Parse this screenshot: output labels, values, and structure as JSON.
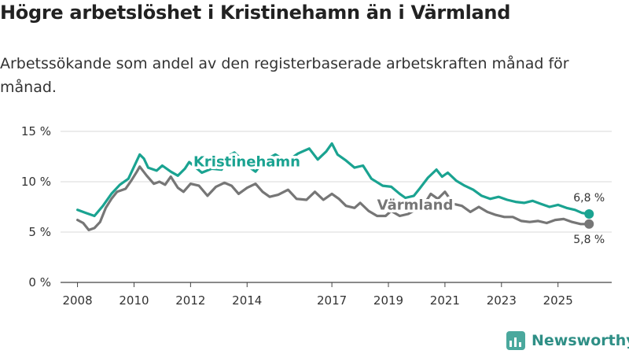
{
  "title": "Högre arbetslöshet i Kristinehamn än i Värmland",
  "subtitle": "Arbetssökande som andel av den registerbaserade arbetskraften månad för månad.",
  "brand": "Newsworthy",
  "chart_data": {
    "type": "line",
    "ylim": [
      0,
      15
    ],
    "xlim": [
      2007.9,
      2026.5
    ],
    "yticks": [
      0,
      5,
      10,
      15
    ],
    "ytick_labels": [
      "0 %",
      "5 %",
      "10 %",
      "15 %"
    ],
    "xticks": [
      2008,
      2010,
      2012,
      2014,
      2017,
      2019,
      2021,
      2023,
      2025
    ],
    "xtick_labels": [
      "2008",
      "2010",
      "2012",
      "2014",
      "2017",
      "2019",
      "2021",
      "2023",
      "2025"
    ],
    "grid": true,
    "series": [
      {
        "name": "Kristinehamn",
        "color": "#1aa391",
        "label_at": [
          2012.1,
          12.0
        ],
        "end_label": "6,8 %",
        "points": [
          [
            2008.0,
            7.2
          ],
          [
            2008.3,
            6.9
          ],
          [
            2008.6,
            6.6
          ],
          [
            2008.9,
            7.6
          ],
          [
            2009.2,
            8.8
          ],
          [
            2009.5,
            9.7
          ],
          [
            2009.8,
            10.3
          ],
          [
            2010.0,
            11.5
          ],
          [
            2010.2,
            12.7
          ],
          [
            2010.35,
            12.3
          ],
          [
            2010.5,
            11.4
          ],
          [
            2010.8,
            11.1
          ],
          [
            2011.0,
            11.6
          ],
          [
            2011.3,
            11.0
          ],
          [
            2011.55,
            10.6
          ],
          [
            2011.8,
            11.3
          ],
          [
            2011.95,
            11.95
          ],
          [
            2012.4,
            10.9
          ],
          [
            2012.75,
            11.3
          ],
          [
            2013.1,
            11.2
          ],
          [
            2013.3,
            12.5
          ],
          [
            2013.55,
            12.9
          ],
          [
            2013.8,
            12.2
          ],
          [
            2014.0,
            11.6
          ],
          [
            2014.3,
            11.0
          ],
          [
            2014.6,
            12.1
          ],
          [
            2015.0,
            12.7
          ],
          [
            2015.4,
            12.0
          ],
          [
            2015.8,
            12.8
          ],
          [
            2016.2,
            13.3
          ],
          [
            2016.5,
            12.2
          ],
          [
            2016.8,
            13.0
          ],
          [
            2017.0,
            13.8
          ],
          [
            2017.2,
            12.7
          ],
          [
            2017.5,
            12.1
          ],
          [
            2017.8,
            11.4
          ],
          [
            2018.1,
            11.6
          ],
          [
            2018.4,
            10.3
          ],
          [
            2018.8,
            9.6
          ],
          [
            2019.1,
            9.5
          ],
          [
            2019.4,
            8.8
          ],
          [
            2019.6,
            8.4
          ],
          [
            2019.9,
            8.6
          ],
          [
            2020.1,
            9.3
          ],
          [
            2020.4,
            10.4
          ],
          [
            2020.7,
            11.2
          ],
          [
            2020.9,
            10.5
          ],
          [
            2021.1,
            10.9
          ],
          [
            2021.4,
            10.1
          ],
          [
            2021.7,
            9.6
          ],
          [
            2022.0,
            9.2
          ],
          [
            2022.3,
            8.6
          ],
          [
            2022.6,
            8.3
          ],
          [
            2022.9,
            8.5
          ],
          [
            2023.2,
            8.2
          ],
          [
            2023.5,
            8.0
          ],
          [
            2023.8,
            7.9
          ],
          [
            2024.1,
            8.1
          ],
          [
            2024.4,
            7.8
          ],
          [
            2024.7,
            7.5
          ],
          [
            2025.0,
            7.7
          ],
          [
            2025.3,
            7.4
          ],
          [
            2025.6,
            7.2
          ],
          [
            2025.85,
            6.9
          ],
          [
            2026.1,
            6.8
          ]
        ]
      },
      {
        "name": "Värmland",
        "color": "#767676",
        "label_at": [
          2018.6,
          7.7
        ],
        "end_label": "5,8 %",
        "points": [
          [
            2008.0,
            6.2
          ],
          [
            2008.2,
            5.9
          ],
          [
            2008.4,
            5.2
          ],
          [
            2008.6,
            5.4
          ],
          [
            2008.8,
            6.0
          ],
          [
            2009.0,
            7.4
          ],
          [
            2009.2,
            8.3
          ],
          [
            2009.4,
            9.0
          ],
          [
            2009.7,
            9.3
          ],
          [
            2009.9,
            10.1
          ],
          [
            2010.1,
            11.0
          ],
          [
            2010.2,
            11.5
          ],
          [
            2010.45,
            10.6
          ],
          [
            2010.7,
            9.8
          ],
          [
            2010.9,
            10.0
          ],
          [
            2011.1,
            9.7
          ],
          [
            2011.3,
            10.5
          ],
          [
            2011.55,
            9.4
          ],
          [
            2011.75,
            9.0
          ],
          [
            2012.0,
            9.8
          ],
          [
            2012.3,
            9.6
          ],
          [
            2012.6,
            8.6
          ],
          [
            2012.9,
            9.5
          ],
          [
            2013.2,
            9.9
          ],
          [
            2013.45,
            9.6
          ],
          [
            2013.7,
            8.8
          ],
          [
            2014.0,
            9.4
          ],
          [
            2014.3,
            9.8
          ],
          [
            2014.55,
            9.0
          ],
          [
            2014.8,
            8.5
          ],
          [
            2015.1,
            8.7
          ],
          [
            2015.45,
            9.2
          ],
          [
            2015.75,
            8.3
          ],
          [
            2016.1,
            8.2
          ],
          [
            2016.4,
            9.0
          ],
          [
            2016.7,
            8.2
          ],
          [
            2017.0,
            8.8
          ],
          [
            2017.25,
            8.3
          ],
          [
            2017.5,
            7.6
          ],
          [
            2017.8,
            7.4
          ],
          [
            2018.0,
            7.9
          ],
          [
            2018.3,
            7.1
          ],
          [
            2018.6,
            6.6
          ],
          [
            2018.9,
            6.6
          ],
          [
            2019.1,
            7.1
          ],
          [
            2019.4,
            6.6
          ],
          [
            2019.7,
            6.8
          ],
          [
            2020.0,
            7.3
          ],
          [
            2020.3,
            7.9
          ],
          [
            2020.5,
            8.8
          ],
          [
            2020.75,
            8.3
          ],
          [
            2021.0,
            9.0
          ],
          [
            2021.3,
            7.8
          ],
          [
            2021.6,
            7.6
          ],
          [
            2021.9,
            7.0
          ],
          [
            2022.2,
            7.5
          ],
          [
            2022.5,
            7.0
          ],
          [
            2022.8,
            6.7
          ],
          [
            2023.1,
            6.5
          ],
          [
            2023.4,
            6.5
          ],
          [
            2023.7,
            6.1
          ],
          [
            2024.0,
            6.0
          ],
          [
            2024.3,
            6.1
          ],
          [
            2024.6,
            5.9
          ],
          [
            2024.9,
            6.2
          ],
          [
            2025.2,
            6.3
          ],
          [
            2025.5,
            6.0
          ],
          [
            2025.8,
            5.8
          ],
          [
            2026.1,
            5.8
          ]
        ]
      }
    ]
  }
}
